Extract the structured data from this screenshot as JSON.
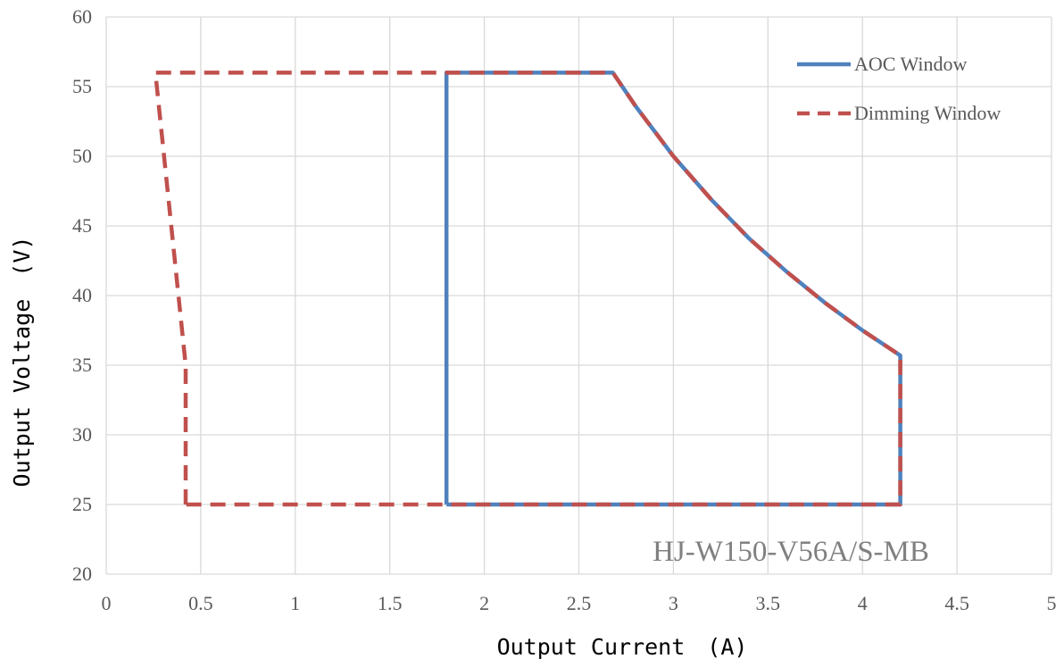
{
  "chart_data": {
    "type": "line",
    "xlabel": "Output Current　(A)",
    "ylabel": "Output Voltage　(V)",
    "xlim": [
      0,
      5
    ],
    "ylim": [
      20,
      60
    ],
    "x_ticks": [
      0,
      0.5,
      1,
      1.5,
      2,
      2.5,
      3,
      3.5,
      4,
      4.5,
      5
    ],
    "y_ticks": [
      20,
      25,
      30,
      35,
      40,
      45,
      50,
      55,
      60
    ],
    "x_tick_labels": [
      "0",
      "0.5",
      "1",
      "1.5",
      "2",
      "2.5",
      "3",
      "3.5",
      "4",
      "4.5",
      "5"
    ],
    "y_tick_labels": [
      "20",
      "25",
      "30",
      "35",
      "40",
      "45",
      "50",
      "55",
      "60"
    ],
    "grid": true,
    "legend_position": "top-right",
    "annotation": "HJ-W150-V56A/S-MB",
    "series": [
      {
        "name": "AOC Window",
        "color": "#4f81bd",
        "style": "solid",
        "points": [
          [
            1.8,
            25
          ],
          [
            1.8,
            56
          ],
          [
            2.68,
            56
          ],
          [
            2.8,
            53.6
          ],
          [
            3.0,
            50.0
          ],
          [
            3.2,
            46.9
          ],
          [
            3.4,
            44.1
          ],
          [
            3.6,
            41.7
          ],
          [
            3.8,
            39.5
          ],
          [
            4.0,
            37.5
          ],
          [
            4.2,
            35.7
          ],
          [
            4.2,
            25
          ],
          [
            1.8,
            25
          ]
        ]
      },
      {
        "name": "Dimming Window",
        "color": "#c0504d",
        "style": "dashed",
        "points": [
          [
            0.42,
            25
          ],
          [
            0.42,
            35
          ],
          [
            0.26,
            56
          ],
          [
            2.68,
            56
          ],
          [
            2.8,
            53.6
          ],
          [
            3.0,
            50.0
          ],
          [
            3.2,
            46.9
          ],
          [
            3.4,
            44.1
          ],
          [
            3.6,
            41.7
          ],
          [
            3.8,
            39.5
          ],
          [
            4.0,
            37.5
          ],
          [
            4.2,
            35.7
          ],
          [
            4.2,
            25
          ],
          [
            0.42,
            25
          ]
        ]
      }
    ]
  }
}
